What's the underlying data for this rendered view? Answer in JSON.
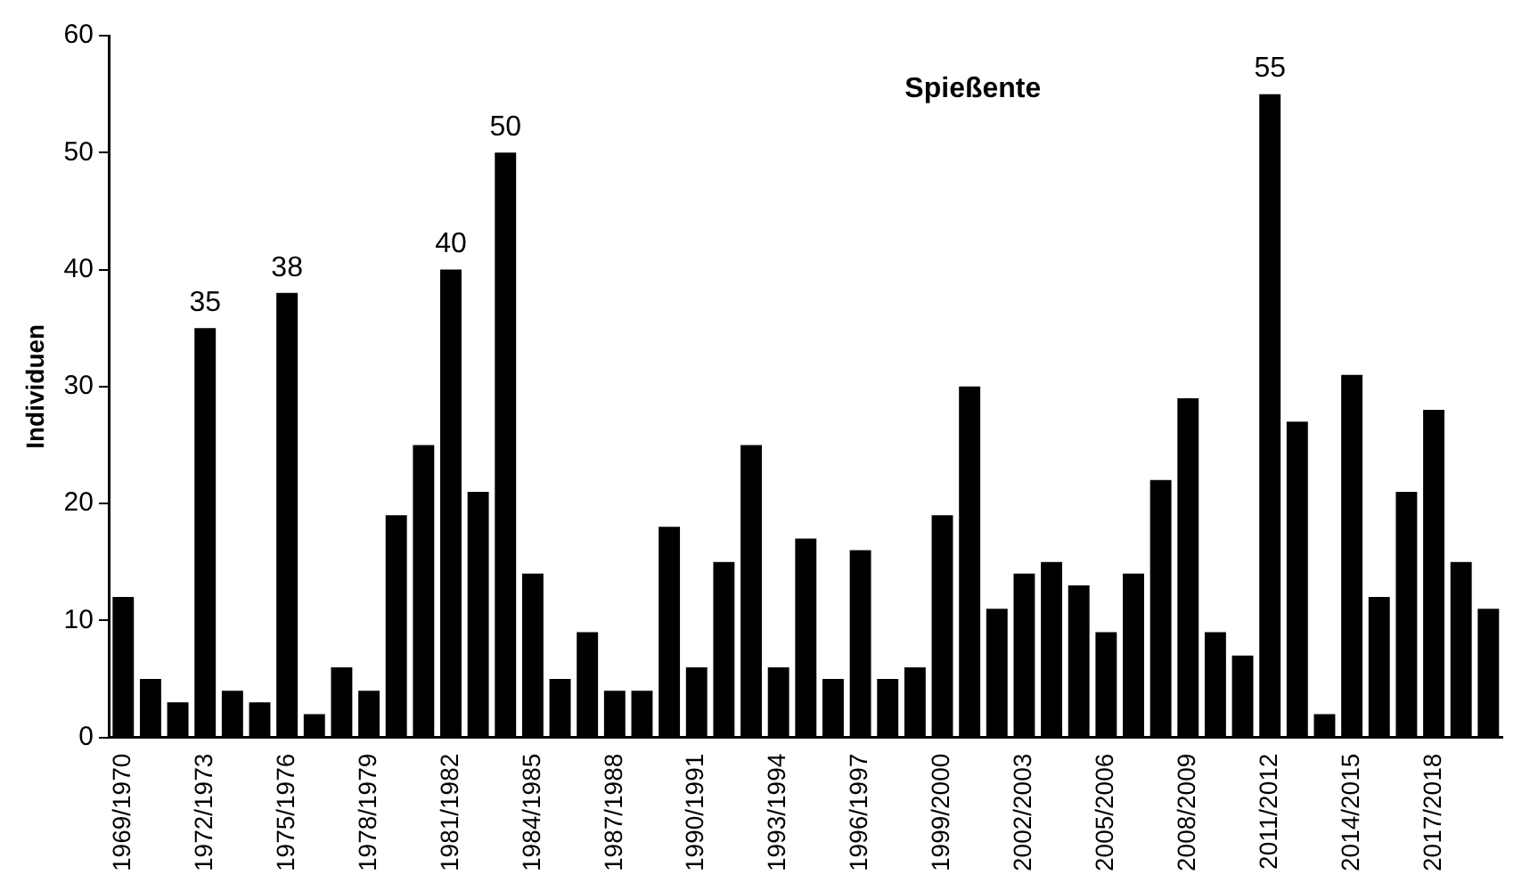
{
  "chart_data": {
    "type": "bar",
    "title": "Spießente",
    "ylabel": "Individuen",
    "categories": [
      "1969/1970",
      null,
      null,
      "1972/1973",
      null,
      null,
      "1975/1976",
      null,
      null,
      "1978/1979",
      null,
      null,
      "1981/1982",
      null,
      null,
      "1984/1985",
      null,
      null,
      "1987/1988",
      null,
      null,
      "1990/1991",
      null,
      null,
      "1993/1994",
      null,
      null,
      "1996/1997",
      null,
      null,
      "1999/2000",
      null,
      null,
      "2002/2003",
      null,
      null,
      "2005/2006",
      null,
      null,
      "2008/2009",
      null,
      null,
      "2011/2012",
      null,
      null,
      "2014/2015",
      null,
      null,
      "2017/2018",
      null,
      null
    ],
    "values": [
      12,
      5,
      3,
      35,
      4,
      3,
      38,
      2,
      6,
      4,
      19,
      25,
      40,
      21,
      50,
      14,
      5,
      9,
      4,
      4,
      18,
      6,
      15,
      25,
      6,
      17,
      5,
      16,
      5,
      6,
      19,
      30,
      11,
      14,
      15,
      13,
      9,
      14,
      22,
      29,
      9,
      7,
      55,
      27,
      2,
      31,
      12,
      21,
      28,
      15,
      11
    ],
    "value_labels": [
      null,
      null,
      null,
      "35",
      null,
      null,
      "38",
      null,
      null,
      null,
      null,
      null,
      "40",
      null,
      "50",
      null,
      null,
      null,
      null,
      null,
      null,
      null,
      null,
      null,
      null,
      null,
      null,
      null,
      null,
      null,
      null,
      null,
      null,
      null,
      null,
      null,
      null,
      null,
      null,
      null,
      null,
      null,
      "55",
      null,
      null,
      null,
      null,
      null,
      null,
      null,
      null
    ],
    "color": "#000000",
    "ylim": [
      0,
      60
    ],
    "yticks": [
      0,
      10,
      20,
      30,
      40,
      50,
      60
    ],
    "grid": false,
    "legend": false
  }
}
